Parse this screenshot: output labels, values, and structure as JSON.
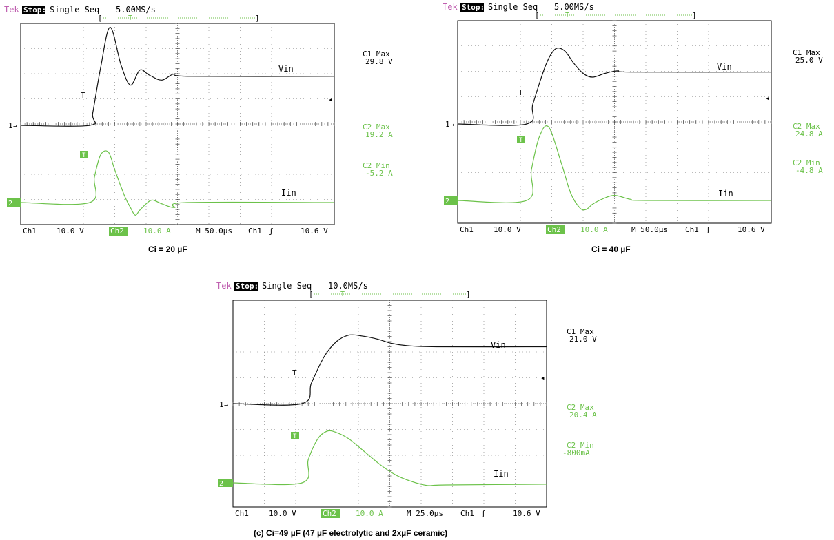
{
  "colors": {
    "ch1": "#111111",
    "ch2": "#6cc24a",
    "brand": "#c060b0",
    "grid": "#6a6a6a",
    "frame": "#000000"
  },
  "scopes": [
    {
      "id": "a",
      "header": {
        "brand": "Tek",
        "status": "Stop:",
        "mode": "Single Seq",
        "rate": "5.00MS/s"
      },
      "trigger_marker": "T",
      "ch1_label": "Vin",
      "ch2_label": "Iin",
      "ch1_marker": "1",
      "ch2_marker": "2",
      "readouts": {
        "c1_max_label": "C1 Max",
        "c1_max_value": "29.8 V",
        "c2_max_label": "C2 Max",
        "c2_max_value": "19.2 A",
        "c2_min_label": "C2 Min",
        "c2_min_value": "-5.2 A"
      },
      "footer": {
        "ch1": "Ch1",
        "ch1_scale": "10.0 V",
        "ch2": "Ch2",
        "ch2_scale": "10.0 A",
        "time": "M 50.0µs",
        "trig_ch": "Ch1",
        "trig_level": "10.6 V"
      },
      "caption": "Ci = 20 µF",
      "chart_data": {
        "type": "line",
        "time_per_div_us": 50,
        "x_divisions": 10,
        "y_divisions": 8,
        "series": [
          {
            "name": "Vin",
            "x_div": [
              0,
              2.2,
              2.3,
              2.55,
              2.85,
              3.2,
              3.5,
              3.8,
              4.1,
              4.5,
              4.9,
              5.4,
              10
            ],
            "y_div": [
              3,
              3,
              3.5,
              5.3,
              6.9,
              5.4,
              4.6,
              5.2,
              5.0,
              4.8,
              5.05,
              4.95,
              4.95
            ]
          },
          {
            "name": "Iin",
            "x_div": [
              0,
              2.2,
              2.35,
              2.55,
              2.8,
              3.0,
              3.3,
              3.5,
              3.65,
              3.8,
              4.0,
              4.2,
              4.5,
              4.9,
              5.3,
              10
            ],
            "y_div": [
              0,
              0,
              1.0,
              1.9,
              2.0,
              1.3,
              0.3,
              -0.2,
              -0.5,
              -0.3,
              -0.05,
              0.1,
              -0.05,
              -0.2,
              0,
              0
            ]
          }
        ]
      }
    },
    {
      "id": "b",
      "header": {
        "brand": "Tek",
        "status": "Stop:",
        "mode": "Single Seq",
        "rate": "5.00MS/s"
      },
      "trigger_marker": "T",
      "ch1_label": "Vin",
      "ch2_label": "Iin",
      "ch1_marker": "1",
      "ch2_marker": "2",
      "readouts": {
        "c1_max_label": "C1 Max",
        "c1_max_value": "25.0 V",
        "c2_max_label": "C2 Max",
        "c2_max_value": "24.8 A",
        "c2_min_label": "C2 Min",
        "c2_min_value": "-4.8 A"
      },
      "footer": {
        "ch1": "Ch1",
        "ch1_scale": "10.0 V",
        "ch2": "Ch2",
        "ch2_scale": "10.0 A",
        "time": "M 50.0µs",
        "trig_ch": "Ch1",
        "trig_level": "10.6 V"
      },
      "caption": "Ci = 40 µF",
      "chart_data": {
        "type": "line",
        "time_per_div_us": 50,
        "x_divisions": 10,
        "y_divisions": 8,
        "series": [
          {
            "name": "Vin",
            "x_div": [
              0,
              2.2,
              2.4,
              2.8,
              3.1,
              3.4,
              3.7,
              4.0,
              4.3,
              4.7,
              5.1,
              5.6,
              10
            ],
            "y_div": [
              3,
              3,
              3.8,
              5.3,
              5.95,
              5.9,
              5.4,
              5.0,
              4.85,
              5.0,
              5.1,
              5.05,
              5.05
            ]
          },
          {
            "name": "Iin",
            "x_div": [
              0,
              2.2,
              2.35,
              2.6,
              2.9,
              3.3,
              3.6,
              3.9,
              4.1,
              4.3,
              4.6,
              5.0,
              5.5,
              6.0,
              10
            ],
            "y_div": [
              0,
              0,
              1.2,
              2.5,
              2.9,
              1.5,
              0.3,
              -0.3,
              -0.35,
              -0.15,
              0.05,
              0.2,
              0.05,
              0,
              0
            ]
          }
        ]
      }
    },
    {
      "id": "c",
      "header": {
        "brand": "Tek",
        "status": "Stop:",
        "mode": "Single Seq",
        "rate": "10.0MS/s"
      },
      "trigger_marker": "T",
      "ch1_label": "Vin",
      "ch2_label": "Iin",
      "ch1_marker": "1",
      "ch2_marker": "2",
      "readouts": {
        "c1_max_label": "C1 Max",
        "c1_max_value": "21.0 V",
        "c2_max_label": "C2 Max",
        "c2_max_value": "20.4 A",
        "c2_min_label": "C2 Min",
        "c2_min_value": "-800mA"
      },
      "footer": {
        "ch1": "Ch1",
        "ch1_scale": "10.0 V",
        "ch2": "Ch2",
        "ch2_scale": "10.0 A",
        "time": "M 25.0µs",
        "trig_ch": "Ch1",
        "trig_level": "10.6 V"
      },
      "caption": "(c) Ci=49 µF (47 µF electrolytic and 2xµF ceramic)",
      "chart_data": {
        "type": "line",
        "time_per_div_us": 25,
        "x_divisions": 10,
        "y_divisions": 8,
        "series": [
          {
            "name": "Vin",
            "x_div": [
              0,
              2.2,
              2.5,
              2.9,
              3.3,
              3.7,
              4.1,
              4.6,
              5.0,
              5.5,
              6.5,
              10
            ],
            "y_div": [
              3,
              3,
              3.8,
              4.8,
              5.4,
              5.65,
              5.62,
              5.5,
              5.35,
              5.25,
              5.2,
              5.2
            ]
          },
          {
            "name": "Iin",
            "x_div": [
              0,
              2.2,
              2.4,
              2.7,
              3.0,
              3.3,
              3.7,
              4.2,
              4.7,
              5.2,
              5.7,
              6.2,
              6.8,
              10
            ],
            "y_div": [
              0,
              0,
              0.9,
              1.7,
              2.0,
              1.95,
              1.7,
              1.2,
              0.7,
              0.3,
              0.05,
              -0.1,
              -0.08,
              -0.05
            ]
          }
        ]
      }
    }
  ]
}
